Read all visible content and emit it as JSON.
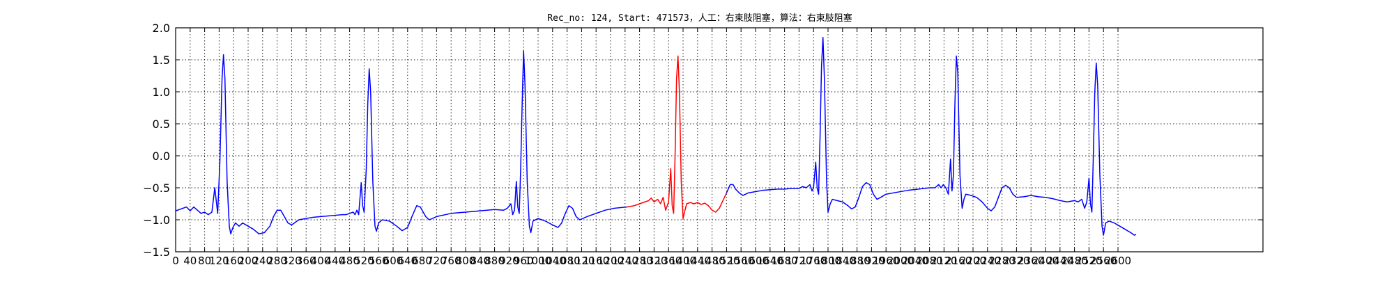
{
  "chart_data": {
    "type": "line",
    "title": "Rec_no: 124, Start: 471573，人工：右束肢阻塞，算法：右束肢阻塞",
    "xlabel": "",
    "ylabel": "",
    "xlim": [
      0,
      3000
    ],
    "ylim": [
      -1.5,
      2.0
    ],
    "grid": true,
    "x_ticks": [
      0,
      40,
      80,
      120,
      160,
      200,
      240,
      280,
      320,
      360,
      400,
      440,
      480,
      520,
      560,
      600,
      640,
      680,
      720,
      760,
      800,
      840,
      880,
      920,
      960,
      1000,
      1040,
      1080,
      1120,
      1160,
      1200,
      1240,
      1280,
      1320,
      1360,
      1400,
      1440,
      1480,
      1520,
      1560,
      1600,
      1640,
      1680,
      1720,
      1760,
      1800,
      1840,
      1880,
      1920,
      1960,
      2000,
      2040,
      2080,
      2120,
      2160,
      2200,
      2240,
      2280,
      2320,
      2360,
      2400,
      2440,
      2480,
      2520,
      2560,
      2600
    ],
    "x_tick_labels": [
      "0",
      "40",
      "80",
      "120",
      "160",
      "200",
      "240",
      "280",
      "320",
      "360",
      "400",
      "440",
      "480",
      "520",
      "560",
      "600",
      "640",
      "680",
      "720",
      "760",
      "800",
      "840",
      "880",
      "920",
      "960",
      "1000",
      "1040",
      "1080",
      "1120",
      "1160",
      "1200",
      "1240",
      "1280",
      "1320",
      "1360",
      "1400",
      "1440",
      "1480",
      "1520",
      "1560",
      "1600",
      "1640",
      "1680",
      "1720",
      "1760",
      "1800",
      "1840",
      "1880",
      "1920",
      "1960",
      "2000",
      "2040",
      "2080",
      "2120",
      "2160",
      "2200",
      "2240",
      "2280",
      "2320",
      "2360",
      "2400",
      "2440",
      "2480",
      "2520",
      "2560",
      "2600"
    ],
    "y_ticks": [
      -1.5,
      -1.0,
      -0.5,
      0.0,
      0.5,
      1.0,
      1.5,
      2.0
    ],
    "y_tick_labels": [
      "−1.5",
      "−1.0",
      "−0.5",
      "0.0",
      "0.5",
      "1.0",
      "1.5",
      "2.0"
    ],
    "series": [
      {
        "color": "#0000ff",
        "points": [
          [
            0,
            -0.86
          ],
          [
            20,
            -0.82
          ],
          [
            30,
            -0.8
          ],
          [
            40,
            -0.86
          ],
          [
            50,
            -0.8
          ],
          [
            60,
            -0.85
          ],
          [
            70,
            -0.9
          ],
          [
            80,
            -0.88
          ],
          [
            90,
            -0.92
          ],
          [
            100,
            -0.88
          ],
          [
            108,
            -0.5
          ],
          [
            112,
            -0.7
          ],
          [
            116,
            -0.9
          ],
          [
            122,
            -0.1
          ],
          [
            128,
            1.2
          ],
          [
            132,
            1.58
          ],
          [
            136,
            1.2
          ],
          [
            142,
            -0.4
          ],
          [
            148,
            -1.1
          ],
          [
            152,
            -1.22
          ],
          [
            158,
            -1.12
          ],
          [
            165,
            -1.05
          ],
          [
            175,
            -1.1
          ],
          [
            185,
            -1.05
          ],
          [
            200,
            -1.1
          ],
          [
            215,
            -1.15
          ],
          [
            230,
            -1.22
          ],
          [
            245,
            -1.2
          ],
          [
            260,
            -1.1
          ],
          [
            270,
            -0.95
          ],
          [
            280,
            -0.85
          ],
          [
            290,
            -0.85
          ],
          [
            300,
            -0.95
          ],
          [
            310,
            -1.05
          ],
          [
            320,
            -1.08
          ],
          [
            340,
            -1.0
          ],
          [
            360,
            -0.98
          ],
          [
            380,
            -0.96
          ],
          [
            400,
            -0.95
          ],
          [
            420,
            -0.94
          ],
          [
            440,
            -0.93
          ],
          [
            460,
            -0.92
          ],
          [
            470,
            -0.92
          ],
          [
            480,
            -0.9
          ],
          [
            490,
            -0.88
          ],
          [
            495,
            -0.92
          ],
          [
            500,
            -0.85
          ],
          [
            505,
            -0.92
          ],
          [
            512,
            -0.42
          ],
          [
            516,
            -0.78
          ],
          [
            520,
            -0.88
          ],
          [
            526,
            -0.2
          ],
          [
            530,
            0.8
          ],
          [
            534,
            1.36
          ],
          [
            538,
            1.0
          ],
          [
            544,
            -0.4
          ],
          [
            550,
            -1.1
          ],
          [
            554,
            -1.18
          ],
          [
            560,
            -1.05
          ],
          [
            570,
            -1.0
          ],
          [
            590,
            -1.02
          ],
          [
            610,
            -1.1
          ],
          [
            625,
            -1.17
          ],
          [
            640,
            -1.12
          ],
          [
            652,
            -0.95
          ],
          [
            665,
            -0.78
          ],
          [
            675,
            -0.8
          ],
          [
            690,
            -0.95
          ],
          [
            700,
            -1.0
          ],
          [
            720,
            -0.95
          ],
          [
            760,
            -0.9
          ],
          [
            800,
            -0.88
          ],
          [
            840,
            -0.86
          ],
          [
            880,
            -0.84
          ],
          [
            905,
            -0.85
          ],
          [
            915,
            -0.82
          ],
          [
            925,
            -0.75
          ],
          [
            930,
            -0.92
          ],
          [
            935,
            -0.85
          ],
          [
            940,
            -0.4
          ],
          [
            944,
            -0.8
          ],
          [
            948,
            -0.9
          ],
          [
            952,
            -0.2
          ],
          [
            956,
            0.8
          ],
          [
            960,
            1.64
          ],
          [
            964,
            1.1
          ],
          [
            970,
            -0.4
          ],
          [
            976,
            -1.1
          ],
          [
            980,
            -1.2
          ],
          [
            986,
            -1.02
          ],
          [
            1000,
            -0.98
          ],
          [
            1020,
            -1.02
          ],
          [
            1040,
            -1.08
          ],
          [
            1055,
            -1.12
          ],
          [
            1065,
            -1.05
          ],
          [
            1075,
            -0.9
          ],
          [
            1085,
            -0.78
          ],
          [
            1095,
            -0.82
          ],
          [
            1105,
            -0.95
          ],
          [
            1115,
            -1.0
          ],
          [
            1135,
            -0.95
          ],
          [
            1160,
            -0.9
          ],
          [
            1185,
            -0.85
          ],
          [
            1210,
            -0.82
          ],
          [
            1245,
            -0.8
          ]
        ]
      },
      {
        "color": "#ff0000",
        "points": [
          [
            1245,
            -0.8
          ],
          [
            1265,
            -0.78
          ],
          [
            1280,
            -0.75
          ],
          [
            1295,
            -0.72
          ],
          [
            1305,
            -0.7
          ],
          [
            1312,
            -0.66
          ],
          [
            1320,
            -0.72
          ],
          [
            1330,
            -0.68
          ],
          [
            1338,
            -0.75
          ],
          [
            1345,
            -0.65
          ],
          [
            1352,
            -0.85
          ],
          [
            1360,
            -0.72
          ],
          [
            1366,
            -0.2
          ],
          [
            1370,
            -0.78
          ],
          [
            1374,
            -0.9
          ],
          [
            1378,
            0.0
          ],
          [
            1382,
            1.2
          ],
          [
            1386,
            1.56
          ],
          [
            1390,
            1.0
          ],
          [
            1395,
            -0.4
          ],
          [
            1400,
            -0.98
          ],
          [
            1404,
            -0.88
          ],
          [
            1410,
            -0.75
          ],
          [
            1420,
            -0.73
          ],
          [
            1430,
            -0.75
          ],
          [
            1440,
            -0.73
          ],
          [
            1450,
            -0.76
          ],
          [
            1460,
            -0.74
          ],
          [
            1470,
            -0.78
          ],
          [
            1480,
            -0.85
          ],
          [
            1490,
            -0.88
          ],
          [
            1500,
            -0.82
          ],
          [
            1510,
            -0.7
          ],
          [
            1520,
            -0.58
          ]
        ]
      },
      {
        "color": "#0000ff",
        "points": [
          [
            1520,
            -0.58
          ],
          [
            1530,
            -0.45
          ],
          [
            1538,
            -0.45
          ],
          [
            1545,
            -0.52
          ],
          [
            1555,
            -0.58
          ],
          [
            1565,
            -0.62
          ],
          [
            1580,
            -0.58
          ],
          [
            1600,
            -0.56
          ],
          [
            1620,
            -0.54
          ],
          [
            1640,
            -0.53
          ],
          [
            1660,
            -0.52
          ],
          [
            1680,
            -0.52
          ],
          [
            1700,
            -0.51
          ],
          [
            1720,
            -0.51
          ],
          [
            1730,
            -0.48
          ],
          [
            1740,
            -0.5
          ],
          [
            1750,
            -0.45
          ],
          [
            1756,
            -0.55
          ],
          [
            1760,
            -0.5
          ],
          [
            1766,
            -0.1
          ],
          [
            1770,
            -0.5
          ],
          [
            1774,
            -0.6
          ],
          [
            1778,
            0.3
          ],
          [
            1782,
            1.4
          ],
          [
            1786,
            1.85
          ],
          [
            1790,
            1.2
          ],
          [
            1796,
            -0.4
          ],
          [
            1800,
            -0.88
          ],
          [
            1806,
            -0.75
          ],
          [
            1812,
            -0.68
          ],
          [
            1825,
            -0.7
          ],
          [
            1840,
            -0.72
          ],
          [
            1855,
            -0.78
          ],
          [
            1865,
            -0.83
          ],
          [
            1875,
            -0.8
          ],
          [
            1885,
            -0.65
          ],
          [
            1895,
            -0.48
          ],
          [
            1905,
            -0.42
          ],
          [
            1915,
            -0.45
          ],
          [
            1925,
            -0.6
          ],
          [
            1935,
            -0.68
          ],
          [
            1945,
            -0.65
          ],
          [
            1960,
            -0.6
          ],
          [
            1990,
            -0.57
          ],
          [
            2020,
            -0.54
          ],
          [
            2050,
            -0.52
          ],
          [
            2080,
            -0.5
          ],
          [
            2095,
            -0.5
          ],
          [
            2105,
            -0.45
          ],
          [
            2112,
            -0.5
          ],
          [
            2118,
            -0.45
          ],
          [
            2125,
            -0.5
          ],
          [
            2132,
            -0.6
          ],
          [
            2138,
            -0.05
          ],
          [
            2142,
            -0.55
          ],
          [
            2146,
            -0.3
          ],
          [
            2150,
            0.8
          ],
          [
            2154,
            1.56
          ],
          [
            2158,
            1.3
          ],
          [
            2164,
            -0.3
          ],
          [
            2170,
            -0.82
          ],
          [
            2175,
            -0.68
          ],
          [
            2180,
            -0.6
          ],
          [
            2195,
            -0.62
          ],
          [
            2210,
            -0.65
          ],
          [
            2225,
            -0.72
          ],
          [
            2240,
            -0.82
          ],
          [
            2250,
            -0.86
          ],
          [
            2260,
            -0.8
          ],
          [
            2270,
            -0.65
          ],
          [
            2280,
            -0.5
          ],
          [
            2290,
            -0.46
          ],
          [
            2300,
            -0.5
          ],
          [
            2310,
            -0.6
          ],
          [
            2320,
            -0.65
          ],
          [
            2340,
            -0.64
          ],
          [
            2360,
            -0.62
          ],
          [
            2380,
            -0.64
          ],
          [
            2400,
            -0.65
          ],
          [
            2420,
            -0.67
          ],
          [
            2440,
            -0.7
          ],
          [
            2460,
            -0.72
          ],
          [
            2480,
            -0.7
          ],
          [
            2490,
            -0.72
          ],
          [
            2500,
            -0.68
          ],
          [
            2508,
            -0.82
          ],
          [
            2514,
            -0.72
          ],
          [
            2520,
            -0.35
          ],
          [
            2524,
            -0.75
          ],
          [
            2528,
            -0.88
          ],
          [
            2532,
            0.0
          ],
          [
            2536,
            1.0
          ],
          [
            2540,
            1.45
          ],
          [
            2544,
            1.1
          ],
          [
            2550,
            -0.3
          ],
          [
            2556,
            -1.1
          ],
          [
            2560,
            -1.24
          ],
          [
            2566,
            -1.05
          ],
          [
            2575,
            -1.02
          ],
          [
            2590,
            -1.05
          ],
          [
            2605,
            -1.1
          ],
          [
            2620,
            -1.15
          ],
          [
            2635,
            -1.2
          ],
          [
            2645,
            -1.24
          ],
          [
            2650,
            -1.23
          ]
        ]
      }
    ]
  }
}
